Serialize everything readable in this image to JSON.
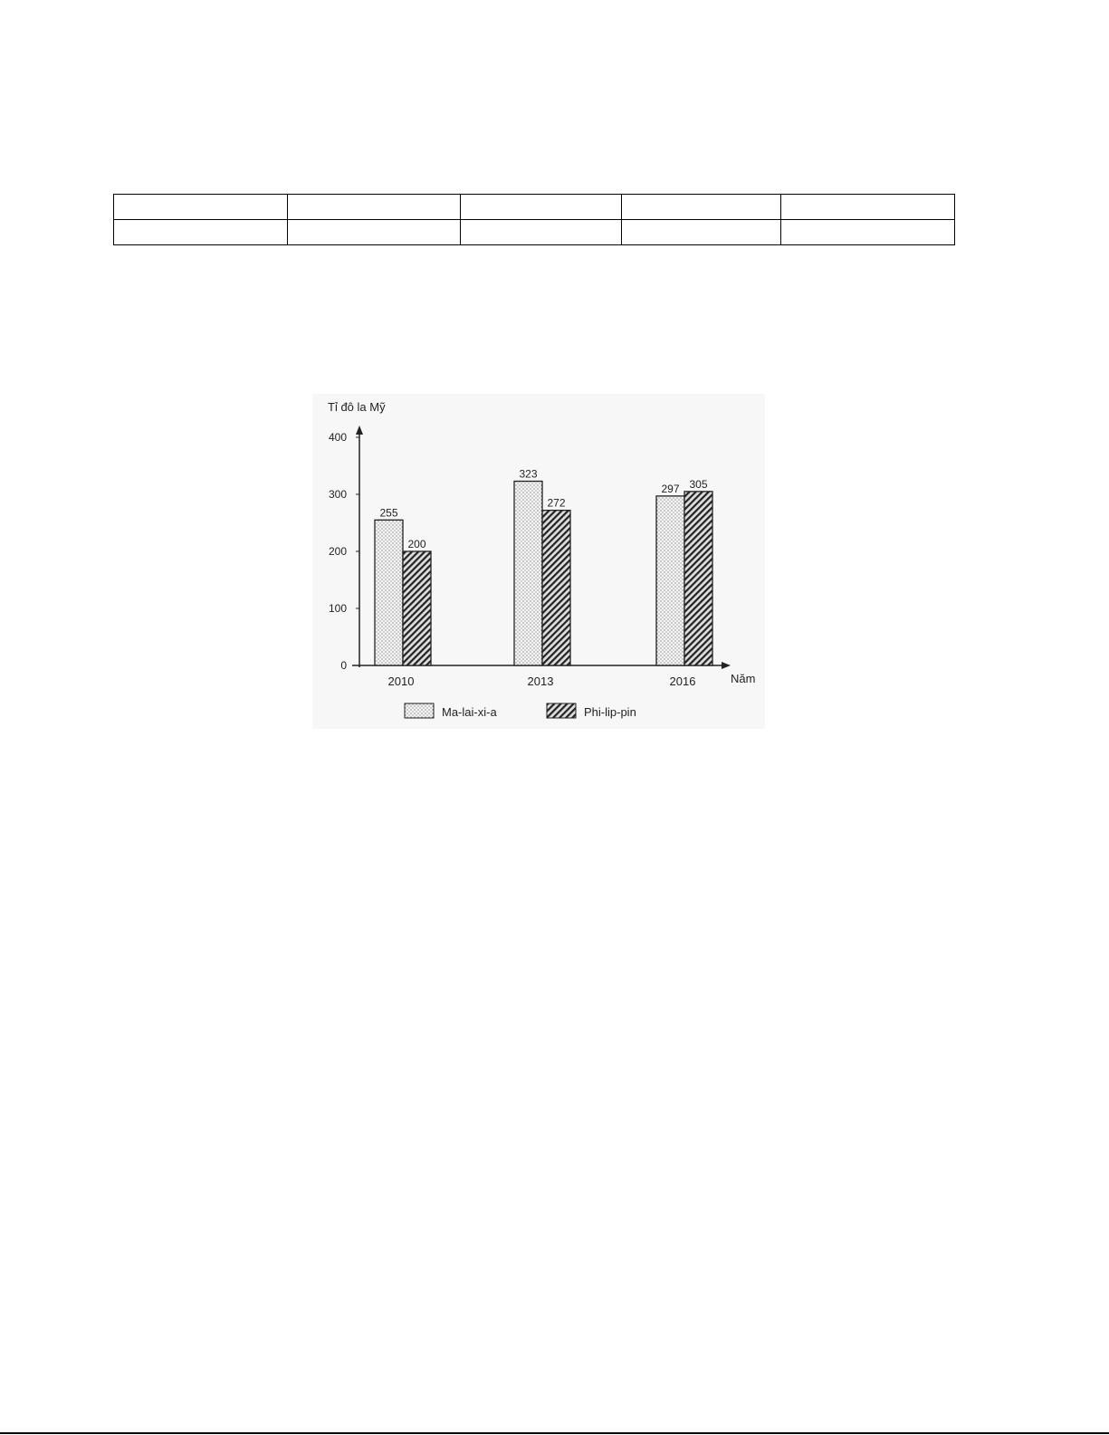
{
  "table": {
    "rows": 2,
    "columns": 5
  },
  "chart_data": {
    "type": "bar",
    "title": "",
    "ylabel": "Tỉ đô la Mỹ",
    "xlabel": "Năm",
    "categories": [
      "2010",
      "2013",
      "2016"
    ],
    "ylim": [
      0,
      400
    ],
    "yticks": [
      0,
      100,
      200,
      300,
      400
    ],
    "grid": false,
    "legend_position": "bottom",
    "series": [
      {
        "name": "Ma-lai-xi-a",
        "values": [
          255,
          323,
          297
        ],
        "pattern": "dots"
      },
      {
        "name": "Phi-lip-pin",
        "values": [
          200,
          272,
          305
        ],
        "pattern": "diagonal-hatch"
      }
    ]
  }
}
